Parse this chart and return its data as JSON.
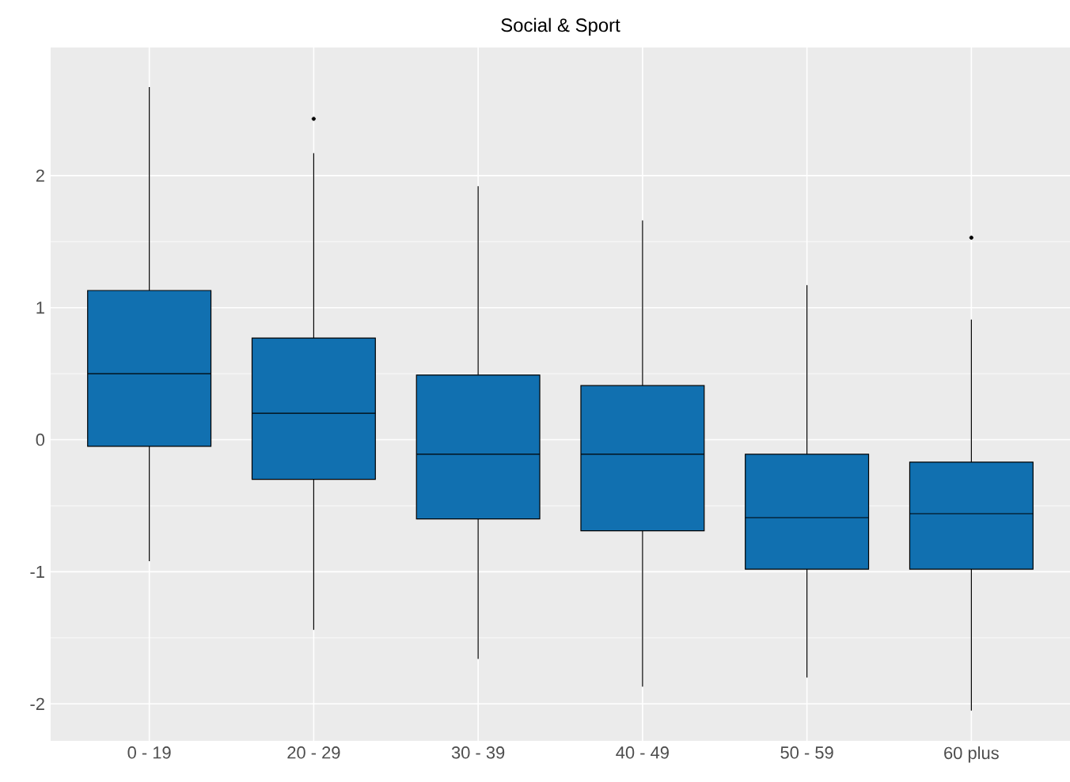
{
  "chart_data": {
    "type": "box",
    "title": "Social & Sport",
    "categories": [
      "0 - 19",
      "20 - 29",
      "30 - 39",
      "40 - 49",
      "50 - 59",
      "60 plus"
    ],
    "color": "#1170b0",
    "boxes": [
      {
        "low": -0.92,
        "q1": -0.05,
        "median": 0.5,
        "q3": 1.13,
        "high": 2.67
      },
      {
        "low": -1.44,
        "q1": -0.3,
        "median": 0.2,
        "q3": 0.77,
        "high": 2.17,
        "outliers": [
          2.43
        ]
      },
      {
        "low": -1.66,
        "q1": -0.6,
        "median": -0.11,
        "q3": 0.49,
        "high": 1.92
      },
      {
        "low": -1.87,
        "q1": -0.69,
        "median": -0.11,
        "q3": 0.41,
        "high": 1.66
      },
      {
        "low": -1.8,
        "q1": -0.98,
        "median": -0.59,
        "q3": -0.11,
        "high": 1.17
      },
      {
        "low": -2.05,
        "q1": -0.98,
        "median": -0.56,
        "q3": -0.17,
        "high": 0.91,
        "outliers": [
          1.53
        ]
      }
    ],
    "ylim": [
      -2.28,
      2.97
    ],
    "yticks": [
      -2,
      -1,
      0,
      1,
      2
    ],
    "grid": true
  }
}
